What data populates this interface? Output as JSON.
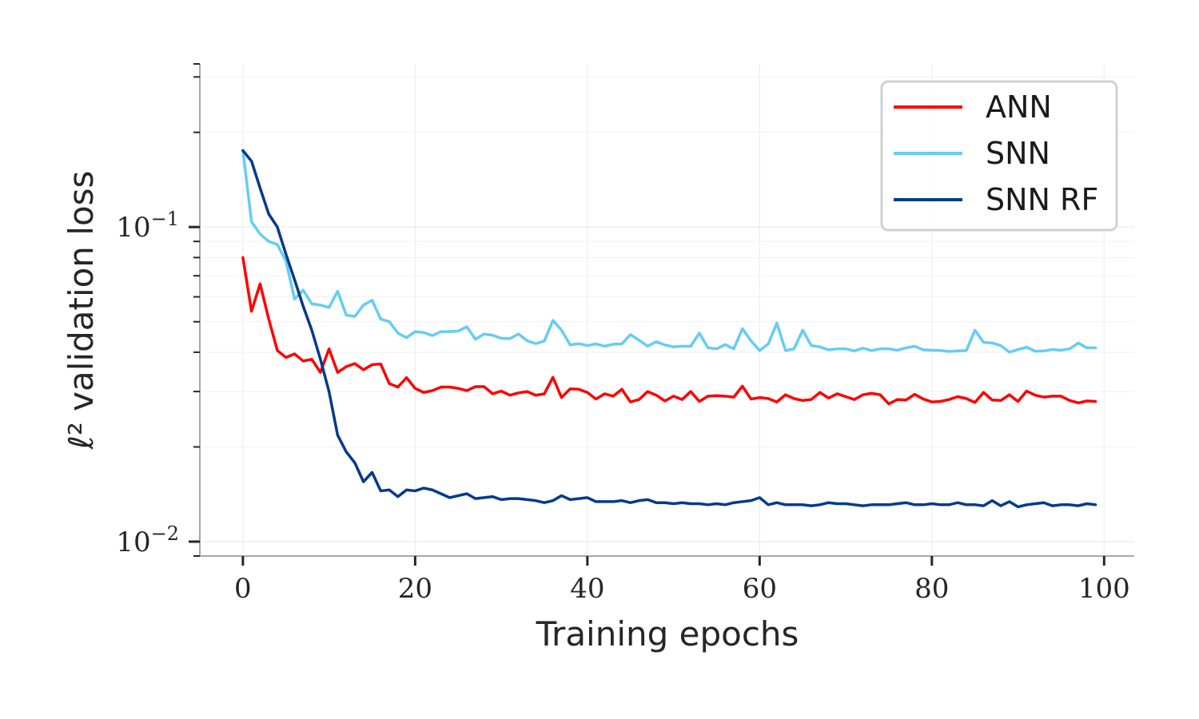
{
  "chart_data": {
    "type": "line",
    "title": "",
    "xlabel": "Training epochs",
    "ylabel": "ℓ² validation loss",
    "yscale": "log",
    "xlim": [
      -5,
      103.5
    ],
    "ylim": [
      0.009,
      0.33
    ],
    "x_ticks": [
      0,
      20,
      40,
      60,
      80,
      100
    ],
    "x_tick_labels": [
      "0",
      "20",
      "40",
      "60",
      "80",
      "100"
    ],
    "y_ticks": [
      0.1,
      0.01
    ],
    "y_tick_labels": [
      {
        "base": "10",
        "exp": "−1"
      },
      {
        "base": "10",
        "exp": "−2"
      }
    ],
    "grid": true,
    "legend_position": "top-right",
    "series": [
      {
        "name": "ANN",
        "color": "#ff0000",
        "values": [
          0.08,
          0.054,
          0.066,
          0.051,
          0.0405,
          0.0385,
          0.0395,
          0.0375,
          0.038,
          0.0345,
          0.041,
          0.0345,
          0.036,
          0.0368,
          0.0352,
          0.0365,
          0.0367,
          0.0318,
          0.031,
          0.0332,
          0.0307,
          0.0298,
          0.0302,
          0.031,
          0.031,
          0.0307,
          0.0302,
          0.0311,
          0.0311,
          0.0295,
          0.0301,
          0.0292,
          0.0297,
          0.03,
          0.0292,
          0.0295,
          0.0333,
          0.0287,
          0.0306,
          0.0305,
          0.0298,
          0.0284,
          0.0295,
          0.029,
          0.0305,
          0.0278,
          0.0283,
          0.03,
          0.0292,
          0.028,
          0.029,
          0.0283,
          0.03,
          0.0279,
          0.029,
          0.0291,
          0.029,
          0.0288,
          0.0312,
          0.0284,
          0.0287,
          0.0285,
          0.0278,
          0.0293,
          0.0285,
          0.0281,
          0.0283,
          0.0298,
          0.0286,
          0.0295,
          0.0289,
          0.0283,
          0.0293,
          0.0296,
          0.0293,
          0.0274,
          0.0283,
          0.0282,
          0.0294,
          0.0284,
          0.0278,
          0.0279,
          0.0283,
          0.0289,
          0.0285,
          0.0277,
          0.0298,
          0.0282,
          0.0281,
          0.0293,
          0.0279,
          0.0301,
          0.0292,
          0.0288,
          0.029,
          0.029,
          0.0281,
          0.0276,
          0.028,
          0.0279
        ]
      },
      {
        "name": "SNN",
        "color": "#66ccf5",
        "values": [
          0.175,
          0.104,
          0.095,
          0.09,
          0.088,
          0.078,
          0.059,
          0.063,
          0.057,
          0.0565,
          0.0555,
          0.0625,
          0.0525,
          0.052,
          0.0565,
          0.0585,
          0.051,
          0.05,
          0.046,
          0.0445,
          0.0465,
          0.0462,
          0.0452,
          0.0465,
          0.0465,
          0.0467,
          0.0482,
          0.044,
          0.0457,
          0.0453,
          0.0443,
          0.0442,
          0.0457,
          0.0435,
          0.0426,
          0.0434,
          0.0505,
          0.047,
          0.0422,
          0.0426,
          0.042,
          0.0425,
          0.0418,
          0.0424,
          0.0425,
          0.0455,
          0.0437,
          0.0418,
          0.0432,
          0.0422,
          0.0416,
          0.0418,
          0.0418,
          0.046,
          0.0413,
          0.041,
          0.0423,
          0.041,
          0.0475,
          0.0435,
          0.0405,
          0.0425,
          0.0495,
          0.0405,
          0.041,
          0.047,
          0.042,
          0.0416,
          0.0407,
          0.041,
          0.041,
          0.0404,
          0.0412,
          0.0405,
          0.041,
          0.041,
          0.0406,
          0.0413,
          0.0418,
          0.0407,
          0.0406,
          0.0405,
          0.0402,
          0.0404,
          0.0405,
          0.047,
          0.043,
          0.0428,
          0.042,
          0.04,
          0.0408,
          0.0415,
          0.0403,
          0.0404,
          0.0408,
          0.0406,
          0.041,
          0.0428,
          0.0413,
          0.0413
        ]
      },
      {
        "name": "SNN RF",
        "color": "#003a8c",
        "values": [
          0.175,
          0.162,
          0.133,
          0.11,
          0.1,
          0.082,
          0.068,
          0.056,
          0.047,
          0.038,
          0.03,
          0.0218,
          0.0193,
          0.0178,
          0.0155,
          0.0166,
          0.0145,
          0.0146,
          0.0139,
          0.0146,
          0.0145,
          0.0148,
          0.0146,
          0.0142,
          0.0138,
          0.014,
          0.0142,
          0.0137,
          0.0138,
          0.0139,
          0.0136,
          0.0137,
          0.0137,
          0.0136,
          0.0135,
          0.0133,
          0.0135,
          0.014,
          0.0136,
          0.0137,
          0.0138,
          0.0134,
          0.0134,
          0.0134,
          0.0135,
          0.0133,
          0.0135,
          0.0136,
          0.0133,
          0.0133,
          0.0132,
          0.0133,
          0.0132,
          0.0132,
          0.0131,
          0.0132,
          0.0131,
          0.0133,
          0.0134,
          0.0135,
          0.0138,
          0.0131,
          0.0133,
          0.0131,
          0.0131,
          0.0131,
          0.013,
          0.0131,
          0.0133,
          0.0132,
          0.0132,
          0.0131,
          0.013,
          0.0131,
          0.0131,
          0.0131,
          0.0132,
          0.0133,
          0.0131,
          0.0131,
          0.0132,
          0.0131,
          0.0131,
          0.0133,
          0.0131,
          0.0131,
          0.013,
          0.0135,
          0.013,
          0.0134,
          0.0129,
          0.0131,
          0.0132,
          0.0133,
          0.013,
          0.0131,
          0.0131,
          0.013,
          0.0132,
          0.0131
        ]
      }
    ]
  }
}
